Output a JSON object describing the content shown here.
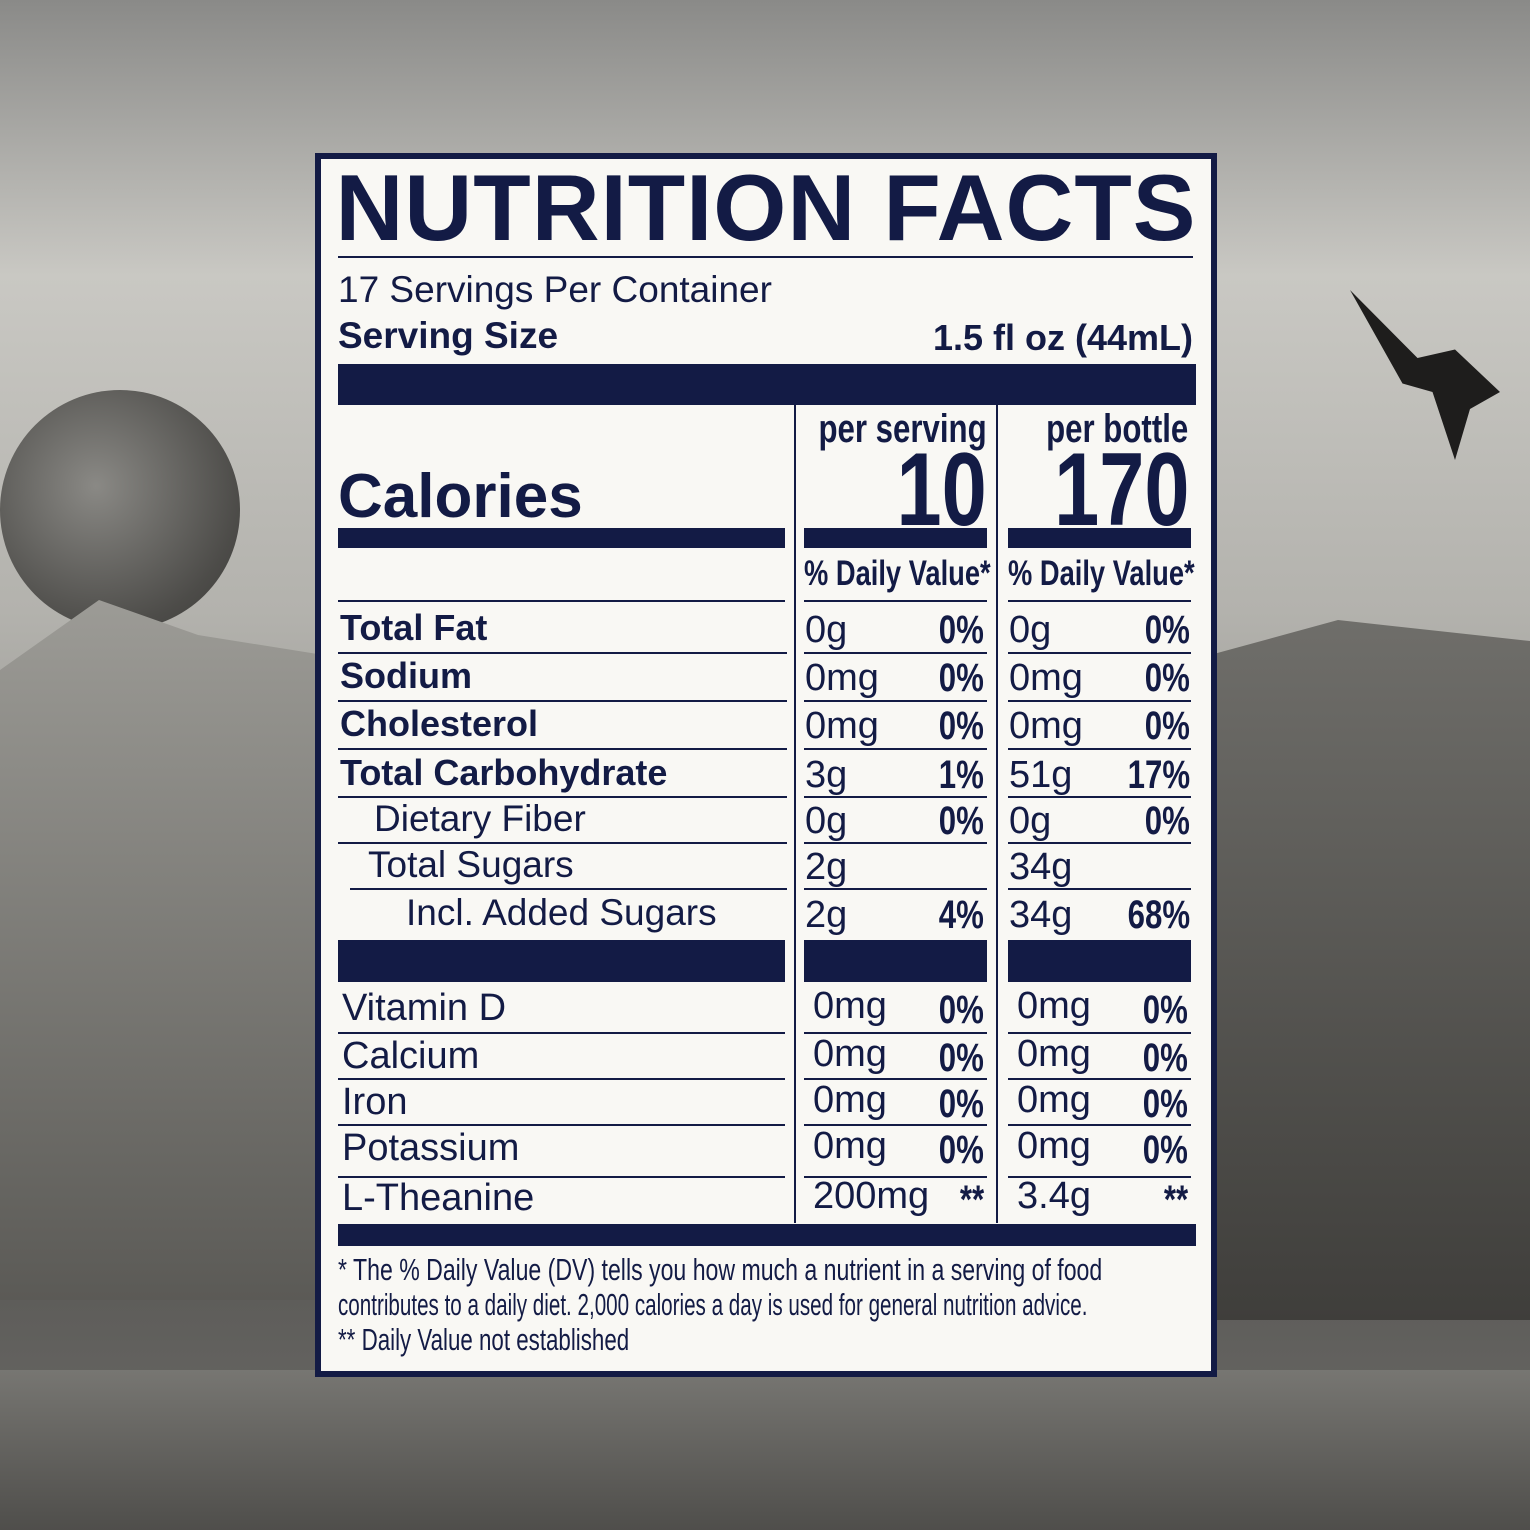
{
  "colors": {
    "ink": "#131b45",
    "paper": "#f9f8f4"
  },
  "title": "NUTRITION FACTS",
  "servings_per_container": "17 Servings Per Container",
  "serving_size": {
    "label": "Serving Size",
    "value": "1.5 fl oz (44mL)"
  },
  "calories": {
    "label": "Calories",
    "per_serving_header": "per serving",
    "per_bottle_header": "per bottle",
    "per_serving": "10",
    "per_bottle": "170"
  },
  "dv_header": {
    "serving": "% Daily Value*",
    "bottle": "% Daily Value*"
  },
  "nutrients": [
    {
      "label": "Total Fat",
      "s_amt": "0g",
      "s_dv": "0%",
      "b_amt": "0g",
      "b_dv": "0%"
    },
    {
      "label": "Sodium",
      "s_amt": "0mg",
      "s_dv": "0%",
      "b_amt": "0mg",
      "b_dv": "0%"
    },
    {
      "label": "Cholesterol",
      "s_amt": "0mg",
      "s_dv": "0%",
      "b_amt": "0mg",
      "b_dv": "0%"
    },
    {
      "label": "Total Carbohydrate",
      "s_amt": "3g",
      "s_dv": "1%",
      "b_amt": "51g",
      "b_dv": "17%"
    },
    {
      "label": "Dietary Fiber",
      "s_amt": "0g",
      "s_dv": "0%",
      "b_amt": "0g",
      "b_dv": "0%"
    },
    {
      "label": "Total Sugars",
      "s_amt": "2g",
      "s_dv": "",
      "b_amt": "34g",
      "b_dv": ""
    },
    {
      "label": "Incl. Added Sugars",
      "s_amt": "2g",
      "s_dv": "4%",
      "b_amt": "34g",
      "b_dv": "68%"
    }
  ],
  "micros": [
    {
      "label": "Vitamin D",
      "s_amt": "0mg",
      "s_dv": "0%",
      "b_amt": "0mg",
      "b_dv": "0%"
    },
    {
      "label": "Calcium",
      "s_amt": "0mg",
      "s_dv": "0%",
      "b_amt": "0mg",
      "b_dv": "0%"
    },
    {
      "label": "Iron",
      "s_amt": "0mg",
      "s_dv": "0%",
      "b_amt": "0mg",
      "b_dv": "0%"
    },
    {
      "label": "Potassium",
      "s_amt": "0mg",
      "s_dv": "0%",
      "b_amt": "0mg",
      "b_dv": "0%"
    },
    {
      "label": "L-Theanine",
      "s_amt": "200mg",
      "s_dv": "**",
      "b_amt": "3.4g",
      "b_dv": "**"
    }
  ],
  "footnotes": [
    "* The % Daily Value (DV) tells you how much a nutrient in a serving of food",
    "contributes to a daily diet. 2,000 calories a day is used for general nutrition advice.",
    "** Daily Value not established"
  ]
}
